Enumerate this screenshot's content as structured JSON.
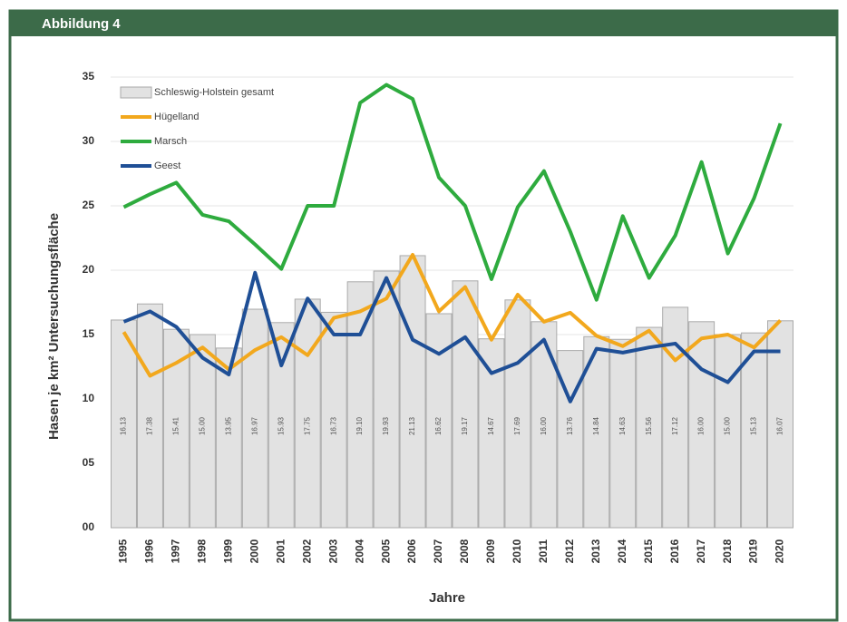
{
  "header": {
    "title": "Abbildung 4"
  },
  "chart_data": {
    "type": "bar_line",
    "ylabel": "Hasen je km² Untersuchungsfläche",
    "xlabel": "Jahre",
    "categories": [
      "1995",
      "1996",
      "1997",
      "1998",
      "1999",
      "2000",
      "2001",
      "2002",
      "2003",
      "2004",
      "2005",
      "2006",
      "2007",
      "2008",
      "2009",
      "2010",
      "2011",
      "2012",
      "2013",
      "2014",
      "2015",
      "2016",
      "2017",
      "2018",
      "2019",
      "2020"
    ],
    "ylim": [
      0,
      35
    ],
    "yticks": [
      {
        "value": 0,
        "label": "00"
      },
      {
        "value": 5,
        "label": "05"
      },
      10,
      15,
      20,
      25,
      30,
      35
    ],
    "grid": true,
    "legend": "upper left",
    "series": [
      {
        "name": "Schleswig-Holstein gesamt",
        "kind": "bar",
        "color": "#e2e2e2",
        "values": [
          16.13,
          17.38,
          15.41,
          15.0,
          13.95,
          16.97,
          15.93,
          17.75,
          16.73,
          19.1,
          19.93,
          21.13,
          16.62,
          19.17,
          14.67,
          17.69,
          16.0,
          13.76,
          14.84,
          14.63,
          15.56,
          17.12,
          16.0,
          15.0,
          15.13,
          16.07
        ],
        "value_labels": [
          "16.13",
          "17.38",
          "15.41",
          "15.00",
          "13.95",
          "16.97",
          "15.93",
          "17.75",
          "16.73",
          "19.10",
          "19.93",
          "21.13",
          "16.62",
          "19.17",
          "14.67",
          "17.69",
          "16.00",
          "13.76",
          "14.84",
          "14.63",
          "15.56",
          "17.12",
          "16.00",
          "15.00",
          "15.13",
          "16.07"
        ]
      },
      {
        "name": "Hügelland",
        "kind": "line",
        "color": "#f2a81d",
        "values": [
          15.2,
          11.8,
          12.8,
          14.0,
          12.3,
          13.8,
          14.8,
          13.4,
          16.3,
          16.8,
          17.8,
          21.2,
          16.8,
          18.7,
          14.6,
          18.1,
          16.0,
          16.7,
          14.9,
          14.1,
          15.3,
          13.0,
          14.7,
          15.0,
          14.0,
          16.1
        ]
      },
      {
        "name": "Marsch",
        "kind": "line",
        "color": "#2eab3e",
        "values": [
          24.9,
          25.9,
          26.8,
          24.3,
          23.8,
          22.0,
          20.1,
          25.0,
          25.0,
          33.0,
          34.4,
          33.3,
          27.2,
          25.0,
          19.3,
          24.9,
          27.7,
          23.0,
          17.7,
          24.2,
          19.4,
          22.7,
          28.4,
          21.3,
          25.6,
          31.4
        ]
      },
      {
        "name": "Geest",
        "kind": "line",
        "color": "#1f4f96",
        "values": [
          16.0,
          16.8,
          15.6,
          13.2,
          11.9,
          19.8,
          12.6,
          17.8,
          15.0,
          15.0,
          19.4,
          14.6,
          13.5,
          14.8,
          12.0,
          12.8,
          14.6,
          9.8,
          13.9,
          13.6,
          14.0,
          14.3,
          12.3,
          11.3,
          13.7,
          13.7
        ]
      }
    ]
  }
}
